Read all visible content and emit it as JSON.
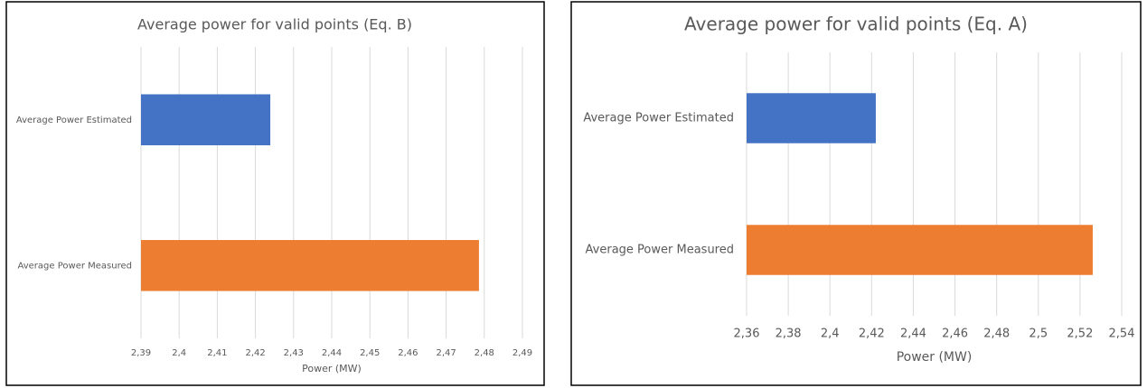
{
  "chart_data": [
    {
      "type": "bar",
      "orientation": "horizontal",
      "title": "Average power for valid points (Eq. B)",
      "categories": [
        "Average Power Estimated",
        "Average Power Measured"
      ],
      "values": [
        2.4239,
        2.4786
      ],
      "colors": [
        "#4472c4",
        "#ed7d31"
      ],
      "xlabel": "Power (MW)",
      "xlim": [
        2.39,
        2.49
      ],
      "xticks": [
        {
          "value": 2.39,
          "label": "2,39"
        },
        {
          "value": 2.4,
          "label": "2,4"
        },
        {
          "value": 2.41,
          "label": "2,41"
        },
        {
          "value": 2.42,
          "label": "2,42"
        },
        {
          "value": 2.43,
          "label": "2,43"
        },
        {
          "value": 2.44,
          "label": "2,44"
        },
        {
          "value": 2.45,
          "label": "2,45"
        },
        {
          "value": 2.46,
          "label": "2,46"
        },
        {
          "value": 2.47,
          "label": "2,47"
        },
        {
          "value": 2.48,
          "label": "2,48"
        },
        {
          "value": 2.49,
          "label": "2,49"
        }
      ],
      "grid": true
    },
    {
      "type": "bar",
      "orientation": "horizontal",
      "title": "Average power for valid points (Eq. A)",
      "categories": [
        "Average Power Estimated",
        "Average Power Measured"
      ],
      "values": [
        2.422,
        2.5261
      ],
      "colors": [
        "#4472c4",
        "#ed7d31"
      ],
      "xlabel": "Power (MW)",
      "xlim": [
        2.36,
        2.54
      ],
      "xticks": [
        {
          "value": 2.36,
          "label": "2,36"
        },
        {
          "value": 2.38,
          "label": "2,38"
        },
        {
          "value": 2.4,
          "label": "2,4"
        },
        {
          "value": 2.42,
          "label": "2,42"
        },
        {
          "value": 2.44,
          "label": "2,44"
        },
        {
          "value": 2.46,
          "label": "2,46"
        },
        {
          "value": 2.48,
          "label": "2,48"
        },
        {
          "value": 2.5,
          "label": "2,5"
        },
        {
          "value": 2.52,
          "label": "2,52"
        },
        {
          "value": 2.54,
          "label": "2,54"
        }
      ],
      "grid": true
    }
  ]
}
